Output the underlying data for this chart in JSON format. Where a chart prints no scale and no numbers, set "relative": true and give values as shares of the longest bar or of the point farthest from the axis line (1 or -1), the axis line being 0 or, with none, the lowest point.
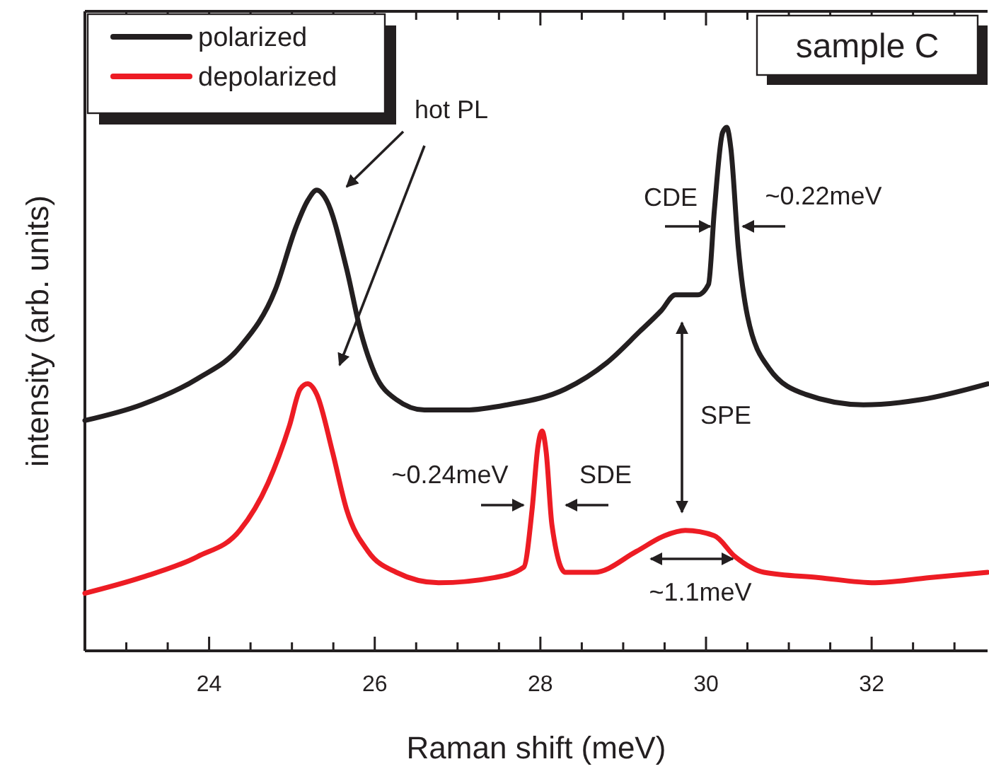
{
  "chart_data": {
    "type": "line",
    "title": "sample C",
    "xlabel": "Raman shift (meV)",
    "ylabel": "intensity (arb. units)",
    "relative": true,
    "legend": "top left",
    "line_style": "solid",
    "marker": "none",
    "xlim": [
      22.5,
      33.4
    ],
    "xticks": [
      {
        "value": 23,
        "label": null
      },
      {
        "value": 23.5,
        "label": null
      },
      24,
      {
        "value": 24.5,
        "label": null
      },
      {
        "value": 25,
        "label": null
      },
      {
        "value": 25.5,
        "label": null
      },
      26,
      {
        "value": 26.5,
        "label": null
      },
      {
        "value": 27,
        "label": null
      },
      {
        "value": 27.5,
        "label": null
      },
      28,
      {
        "value": 28.5,
        "label": null
      },
      {
        "value": 29,
        "label": null
      },
      {
        "value": 29.5,
        "label": null
      },
      30,
      {
        "value": 30.5,
        "label": null
      },
      {
        "value": 31,
        "label": null
      },
      {
        "value": 31.5,
        "label": null
      },
      32,
      {
        "value": 32.5,
        "label": null
      },
      {
        "value": 33,
        "label": null
      }
    ],
    "series": [
      {
        "name": "polarized",
        "color": "#231f20",
        "x": [
          22.5,
          23.18,
          23.86,
          24.37,
          24.8,
          25.05,
          25.19,
          25.3,
          25.42,
          25.66,
          25.83,
          26.0,
          26.26,
          26.6,
          27.1,
          27.6,
          28.3,
          28.8,
          29.2,
          29.46,
          29.63,
          29.9,
          30.03,
          30.1,
          30.2,
          30.25,
          30.3,
          30.39,
          30.5,
          30.76,
          31.2,
          31.9,
          32.6,
          33.4
        ],
        "values": [
          0.44,
          0.47,
          0.52,
          0.58,
          0.69,
          0.81,
          0.86,
          0.88,
          0.86,
          0.73,
          0.61,
          0.53,
          0.48,
          0.46,
          0.46,
          0.47,
          0.5,
          0.55,
          0.61,
          0.65,
          0.68,
          0.68,
          0.7,
          0.84,
          0.99,
          1,
          0.96,
          0.77,
          0.64,
          0.54,
          0.49,
          0.47,
          0.48,
          0.51
        ]
      },
      {
        "name": "depolarized",
        "color": "#ed1c24",
        "x": [
          22.5,
          23.18,
          23.86,
          24.37,
          24.71,
          24.97,
          25.1,
          25.19,
          25.3,
          25.49,
          25.66,
          25.92,
          26.26,
          26.77,
          27.45,
          27.8,
          27.9,
          27.97,
          28.02,
          28.07,
          28.14,
          28.3,
          28.65,
          29.16,
          29.5,
          29.75,
          30.1,
          30.35,
          30.7,
          31.36,
          32.04,
          32.7,
          33.4
        ],
        "values": [
          0.11,
          0.14,
          0.18,
          0.23,
          0.32,
          0.43,
          0.5,
          0.51,
          0.49,
          0.38,
          0.27,
          0.19,
          0.15,
          0.13,
          0.14,
          0.16,
          0.27,
          0.39,
          0.42,
          0.38,
          0.24,
          0.15,
          0.15,
          0.19,
          0.22,
          0.23,
          0.22,
          0.18,
          0.15,
          0.14,
          0.13,
          0.14,
          0.15
        ]
      }
    ],
    "annotations": [
      "hot PL",
      "CDE",
      "~0.22meV",
      "SPE",
      "~0.24meV",
      "SDE",
      "~1.1meV"
    ]
  }
}
